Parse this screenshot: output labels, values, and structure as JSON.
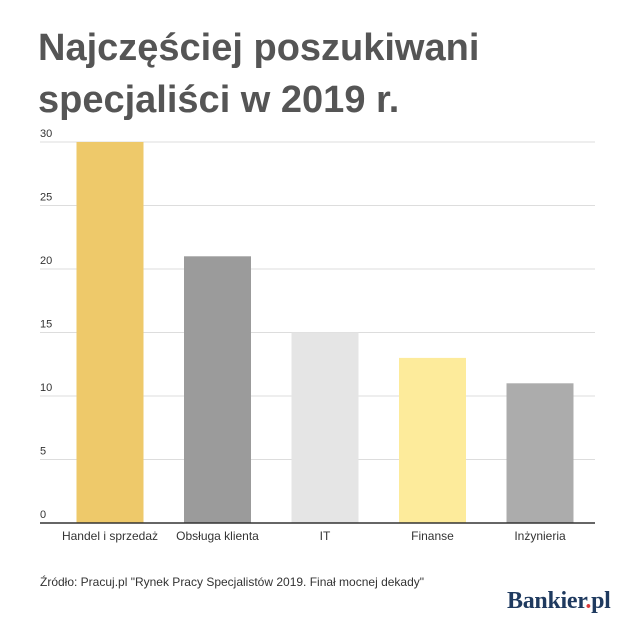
{
  "title": {
    "line1": "Najczęściej poszukiwani",
    "line2": "specjaliści w 2019 r."
  },
  "chart_data": {
    "type": "bar",
    "categories": [
      "Handel i sprzedaż",
      "Obsługa klienta",
      "IT",
      "Finanse",
      "Inżynieria"
    ],
    "values": [
      30,
      21,
      15,
      13,
      11
    ],
    "colors": [
      "#eec96a",
      "#9b9b9b",
      "#e5e5e5",
      "#fdeb9b",
      "#acacac"
    ],
    "ylim": [
      0,
      30
    ],
    "yticks": [
      0,
      5,
      10,
      15,
      20,
      25,
      30
    ],
    "grid": true,
    "legend": "none",
    "xlabel": "",
    "ylabel": ""
  },
  "source": "Źródło: Pracuj.pl \"Rynek Pracy Specjalistów 2019. Finał mocnej dekady\"",
  "brand": {
    "name": "Bankier",
    "suffix": "pl",
    "accent_color": "#d93b3b"
  }
}
